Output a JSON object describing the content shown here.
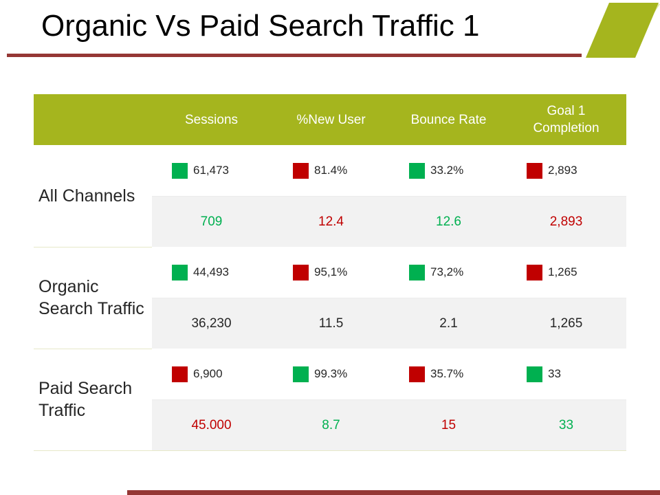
{
  "title": "Organic Vs Paid Search Traffic 1",
  "colors": {
    "up": "#00b050",
    "down": "#c00000",
    "header": "#a5b51e",
    "accent_rule": "#953735",
    "neutral_text": "#262626"
  },
  "headers": [
    "Sessions",
    "%New User",
    "Bounce Rate",
    "Goal 1 Completion"
  ],
  "groups": [
    {
      "label": "All Channels",
      "metrics": [
        {
          "value": "61,473",
          "indicator": "up"
        },
        {
          "value": "81.4%",
          "indicator": "down"
        },
        {
          "value": "33.2%",
          "indicator": "up"
        },
        {
          "value": "2,893",
          "indicator": "down"
        }
      ],
      "changes": [
        {
          "value": "709",
          "tone": "up"
        },
        {
          "value": "12.4",
          "tone": "down"
        },
        {
          "value": "12.6",
          "tone": "up"
        },
        {
          "value": "2,893",
          "tone": "down"
        }
      ]
    },
    {
      "label": "Organic Search Traffic",
      "metrics": [
        {
          "value": "44,493",
          "indicator": "up"
        },
        {
          "value": "95,1%",
          "indicator": "down"
        },
        {
          "value": "73,2%",
          "indicator": "up"
        },
        {
          "value": "1,265",
          "indicator": "down"
        }
      ],
      "changes": [
        {
          "value": "36,230",
          "tone": "neutral"
        },
        {
          "value": "11.5",
          "tone": "neutral"
        },
        {
          "value": "2.1",
          "tone": "neutral"
        },
        {
          "value": "1,265",
          "tone": "neutral"
        }
      ]
    },
    {
      "label": "Paid Search Traffic",
      "metrics": [
        {
          "value": "6,900",
          "indicator": "down"
        },
        {
          "value": "99.3%",
          "indicator": "up"
        },
        {
          "value": "35.7%",
          "indicator": "down"
        },
        {
          "value": "33",
          "indicator": "up"
        }
      ],
      "changes": [
        {
          "value": "45.000",
          "tone": "down"
        },
        {
          "value": "8.7",
          "tone": "up"
        },
        {
          "value": "15",
          "tone": "down"
        },
        {
          "value": "33",
          "tone": "up"
        }
      ]
    }
  ]
}
